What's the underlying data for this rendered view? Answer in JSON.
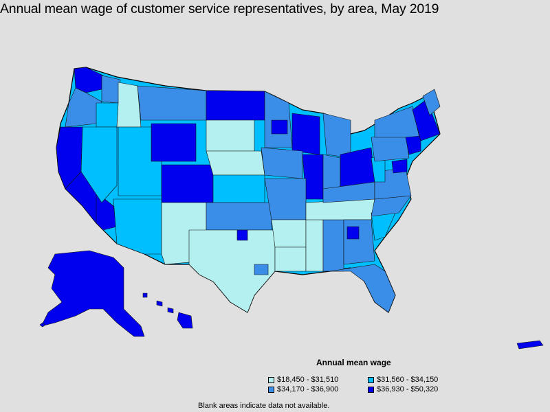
{
  "title": "Annual mean wage of customer service representatives, by area, May 2019",
  "legend": {
    "title": "Annual mean wage",
    "items": [
      {
        "label": "$18,450 - $31,510",
        "color": "#b4f0f0"
      },
      {
        "label": "$31,560 - $34,150",
        "color": "#00bfff"
      },
      {
        "label": "$34,170 - $36,900",
        "color": "#3a8ee8"
      },
      {
        "label": "$36,930 - $50,320",
        "color": "#0000ee"
      }
    ]
  },
  "footnote": "Blank areas indicate data not available.",
  "colors": {
    "background": "#e0e0e0",
    "tier1": "#b4f0f0",
    "tier2": "#00bfff",
    "tier3": "#3a8ee8",
    "tier4": "#0000ee"
  }
}
